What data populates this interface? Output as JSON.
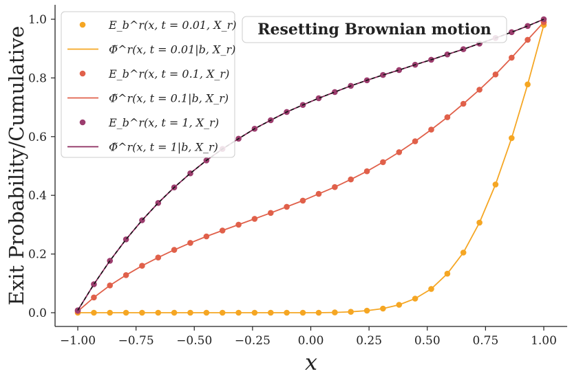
{
  "chart_data": {
    "type": "line",
    "title": "Resetting Brownian motion",
    "xlabel": "x",
    "ylabel": "Exit Probability/Cumulative",
    "xlim": [
      -1.05,
      1.05
    ],
    "ylim": [
      -0.04,
      1.05
    ],
    "xticks": [
      -1.0,
      -0.75,
      -0.5,
      -0.25,
      0.0,
      0.25,
      0.5,
      0.75,
      1.0
    ],
    "xtick_labels": [
      "−1.00",
      "−0.75",
      "−0.50",
      "−0.25",
      "0.00",
      "0.25",
      "0.50",
      "0.75",
      "1.00"
    ],
    "yticks": [
      0.0,
      0.2,
      0.4,
      0.6,
      0.8,
      1.0
    ],
    "ytick_labels": [
      "0.0",
      "0.2",
      "0.4",
      "0.6",
      "0.8",
      "1.0"
    ],
    "grid": false,
    "legend_position": "top-left",
    "x_points": [
      -1.0,
      -0.931,
      -0.862,
      -0.793,
      -0.724,
      -0.655,
      -0.586,
      -0.517,
      -0.448,
      -0.379,
      -0.31,
      -0.241,
      -0.172,
      -0.103,
      -0.034,
      0.034,
      0.103,
      0.172,
      0.241,
      0.31,
      0.379,
      0.448,
      0.517,
      0.586,
      0.655,
      0.724,
      0.793,
      0.862,
      0.931,
      1.0
    ],
    "series": [
      {
        "name": "E_b^r(x, t = 0.01, X_r)",
        "kind": "markers",
        "color": "#f5a623",
        "values": [
          0.0,
          0.0,
          0.0,
          0.0,
          0.0,
          0.0,
          0.0,
          0.0,
          0.0,
          0.0,
          0.0,
          0.0,
          0.0,
          0.0,
          0.0,
          0.0,
          0.001,
          0.003,
          0.007,
          0.014,
          0.027,
          0.048,
          0.081,
          0.133,
          0.205,
          0.307,
          0.437,
          0.595,
          0.778,
          0.98
        ]
      },
      {
        "name": "Φ̃^r(x, t = 0.01 | b, X_r)",
        "kind": "line",
        "color": "#f5a623",
        "values": [
          0.0,
          0.0,
          0.0,
          0.0,
          0.0,
          0.0,
          0.0,
          0.0,
          0.0,
          0.0,
          0.0,
          0.0,
          0.0,
          0.0,
          0.0,
          0.0,
          0.001,
          0.003,
          0.007,
          0.014,
          0.027,
          0.048,
          0.081,
          0.133,
          0.205,
          0.307,
          0.437,
          0.595,
          0.778,
          0.98
        ]
      },
      {
        "name": "E_b^r(x, t = 0.1, X_r)",
        "kind": "markers",
        "color": "#e0604a",
        "values": [
          0.005,
          0.052,
          0.093,
          0.128,
          0.16,
          0.188,
          0.214,
          0.238,
          0.26,
          0.28,
          0.3,
          0.32,
          0.34,
          0.361,
          0.382,
          0.405,
          0.428,
          0.454,
          0.482,
          0.513,
          0.547,
          0.584,
          0.624,
          0.666,
          0.712,
          0.76,
          0.812,
          0.869,
          0.93,
          0.99
        ]
      },
      {
        "name": "Φ̃^r(x, t = 0.1 | b, X_r)",
        "kind": "line",
        "color": "#e0604a",
        "values": [
          0.005,
          0.052,
          0.093,
          0.128,
          0.16,
          0.188,
          0.214,
          0.238,
          0.26,
          0.28,
          0.3,
          0.32,
          0.34,
          0.361,
          0.382,
          0.405,
          0.428,
          0.454,
          0.482,
          0.513,
          0.547,
          0.584,
          0.624,
          0.666,
          0.712,
          0.76,
          0.812,
          0.869,
          0.93,
          0.99
        ]
      },
      {
        "name": "E_b^r(x, t = 1, X_r)",
        "kind": "markers",
        "color": "#9c3d6e",
        "values": [
          0.008,
          0.097,
          0.177,
          0.25,
          0.315,
          0.374,
          0.427,
          0.475,
          0.519,
          0.558,
          0.593,
          0.627,
          0.656,
          0.684,
          0.708,
          0.731,
          0.752,
          0.773,
          0.792,
          0.81,
          0.827,
          0.845,
          0.862,
          0.88,
          0.898,
          0.917,
          0.936,
          0.956,
          0.977,
          1.0
        ]
      },
      {
        "name": "Φ̃^r(x, t = 1 | b, X_r)",
        "kind": "line",
        "color": "#8b2a5e",
        "values": [
          0.008,
          0.097,
          0.177,
          0.25,
          0.315,
          0.374,
          0.427,
          0.475,
          0.519,
          0.558,
          0.593,
          0.627,
          0.656,
          0.684,
          0.708,
          0.731,
          0.752,
          0.773,
          0.792,
          0.81,
          0.827,
          0.845,
          0.862,
          0.88,
          0.898,
          0.917,
          0.936,
          0.956,
          0.977,
          1.0
        ]
      },
      {
        "name": "reference (dashed)",
        "kind": "dashed",
        "color": "#111111",
        "values": [
          0.008,
          0.097,
          0.177,
          0.25,
          0.315,
          0.374,
          0.427,
          0.475,
          0.519,
          0.558,
          0.593,
          0.627,
          0.656,
          0.684,
          0.708,
          0.731,
          0.752,
          0.773,
          0.792,
          0.81,
          0.827,
          0.845,
          0.862,
          0.88,
          0.898,
          0.917,
          0.936,
          0.956,
          0.977,
          1.0
        ]
      }
    ],
    "legend": [
      {
        "label": "E_b^r(x, t = 0.01, X_r)",
        "kind": "marker",
        "color": "#f5a623"
      },
      {
        "label": "Φ̃^r(x, t = 0.01|b, X_r)",
        "kind": "line",
        "color": "#f5a623"
      },
      {
        "label": "E_b^r(x, t = 0.1, X_r)",
        "kind": "marker",
        "color": "#e0604a"
      },
      {
        "label": "Φ̃^r(x, t = 0.1|b, X_r)",
        "kind": "line",
        "color": "#e0604a"
      },
      {
        "label": "E_b^r(x, t = 1, X_r)",
        "kind": "marker",
        "color": "#9c3d6e"
      },
      {
        "label": "Φ̃^r(x, t = 1|b, X_r)",
        "kind": "line",
        "color": "#8b2a5e"
      }
    ]
  }
}
